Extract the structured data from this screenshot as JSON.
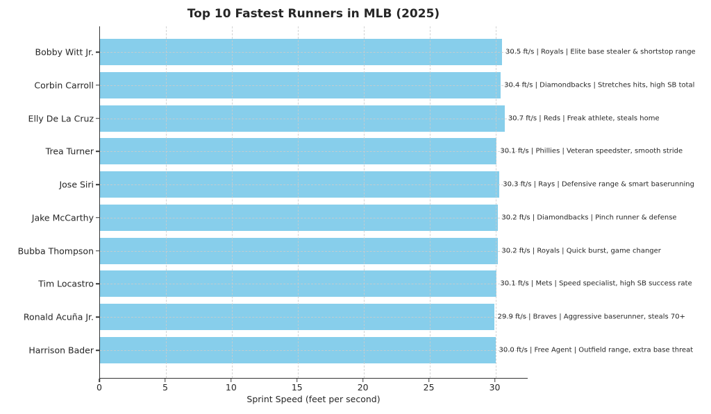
{
  "chart_data": {
    "type": "bar",
    "orientation": "horizontal",
    "title": "Top 10 Fastest Runners in MLB (2025)",
    "xlabel": "Sprint Speed (feet per second)",
    "ylabel": "",
    "categories": [
      "Bobby Witt Jr.",
      "Corbin Carroll",
      "Elly De La Cruz",
      "Trea Turner",
      "Jose Siri",
      "Jake McCarthy",
      "Bubba Thompson",
      "Tim Locastro",
      "Ronald Acuña Jr.",
      "Harrison Bader"
    ],
    "values": [
      30.5,
      30.4,
      30.7,
      30.1,
      30.3,
      30.2,
      30.2,
      30.1,
      29.9,
      30.0
    ],
    "annotations": [
      "30.5 ft/s | Royals | Elite base stealer & shortstop range",
      "30.4 ft/s | Diamondbacks | Stretches hits, high SB total",
      "30.7 ft/s | Reds | Freak athlete, steals home",
      "30.1 ft/s | Phillies | Veteran speedster, smooth stride",
      "30.3 ft/s | Rays | Defensive range & smart baserunning",
      "30.2 ft/s | Diamondbacks | Pinch runner & defense",
      "30.2 ft/s | Royals | Quick burst, game changer",
      "30.1 ft/s | Mets | Speed specialist, high SB success rate",
      "29.9 ft/s | Braves | Aggressive baserunner, steals 70+",
      "30.0 ft/s | Free Agent | Outfield range, extra base threat"
    ],
    "xticks": [
      0,
      5,
      10,
      15,
      20,
      25,
      30
    ],
    "xlim": [
      0,
      32.5
    ],
    "grid": true,
    "legend": false,
    "bar_color": "#87CEEB",
    "grid_color": "#cccccc",
    "spine_color": "#333333",
    "text_color": "#262626"
  }
}
